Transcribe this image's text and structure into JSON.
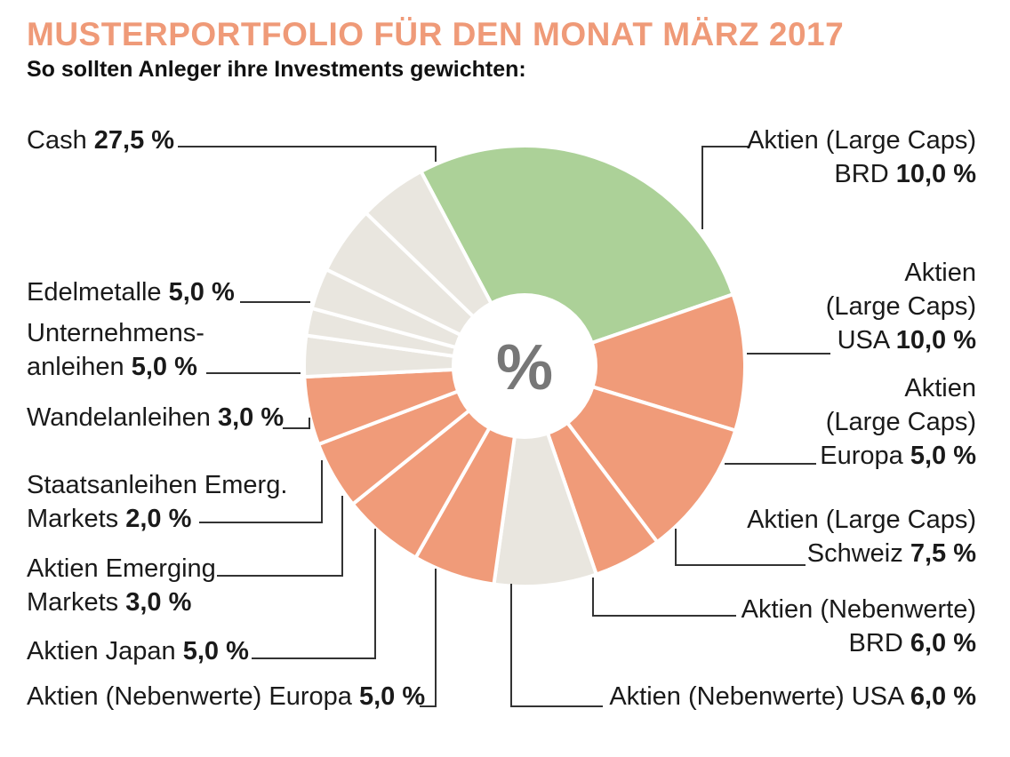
{
  "header": {
    "title": "MUSTERPORTFOLIO FÜR DEN MONAT MÄRZ 2017",
    "subtitle": "So sollten Anleger ihre Investments gewichten:"
  },
  "center_symbol": "%",
  "colors": {
    "title": "#ef9a78",
    "cash": "#acd198",
    "aktien": "#f09b79",
    "anleihen": "#e9e6df",
    "separator": "#ffffff",
    "leader": "#333333"
  },
  "chart_data": {
    "type": "pie",
    "donut": true,
    "title": "MUSTERPORTFOLIO FÜR DEN MONAT MÄRZ 2017",
    "subtitle": "So sollten Anleger ihre Investments gewichten:",
    "unit": "%",
    "slices": [
      {
        "lines": [
          "Cash"
        ],
        "value": 27.5,
        "value_text": "27,5 %",
        "group": "cash"
      },
      {
        "lines": [
          "Aktien (Large Caps)",
          "BRD"
        ],
        "value": 10.0,
        "value_text": "10,0 %",
        "group": "aktien"
      },
      {
        "lines": [
          "Aktien",
          "(Large Caps)",
          "USA"
        ],
        "value": 10.0,
        "value_text": "10,0 %",
        "group": "aktien"
      },
      {
        "lines": [
          "Aktien",
          "(Large Caps)",
          "Europa"
        ],
        "value": 5.0,
        "value_text": "5,0 %",
        "group": "aktien"
      },
      {
        "lines": [
          "Aktien (Large Caps)",
          "Schweiz"
        ],
        "value": 7.5,
        "value_text": "7,5 %",
        "group": "anleihen"
      },
      {
        "lines": [
          "Aktien (Nebenwerte)",
          "BRD"
        ],
        "value": 6.0,
        "value_text": "6,0 %",
        "group": "aktien"
      },
      {
        "lines": [
          "Aktien (Nebenwerte) USA"
        ],
        "value": 6.0,
        "value_text": "6,0 %",
        "group": "aktien"
      },
      {
        "lines": [
          "Aktien (Nebenwerte) Europa"
        ],
        "value": 5.0,
        "value_text": "5,0 %",
        "group": "aktien"
      },
      {
        "lines": [
          "Aktien Japan"
        ],
        "value": 5.0,
        "value_text": "5,0 %",
        "group": "aktien"
      },
      {
        "lines": [
          "Aktien Emerging",
          "Markets"
        ],
        "value": 3.0,
        "value_text": "3,0 %",
        "group": "anleihen"
      },
      {
        "lines": [
          "Staatsanleihen Emerg.",
          "Markets"
        ],
        "value": 2.0,
        "value_text": "2,0 %",
        "group": "anleihen"
      },
      {
        "lines": [
          "Wandelanleihen"
        ],
        "value": 3.0,
        "value_text": "3,0 %",
        "group": "anleihen"
      },
      {
        "lines": [
          "Unternehmens-",
          "anleihen"
        ],
        "value": 5.0,
        "value_text": "5,0 %",
        "group": "anleihen"
      },
      {
        "lines": [
          "Edelmetalle"
        ],
        "value": 5.0,
        "value_text": "5,0 %",
        "group": "anleihen"
      }
    ]
  }
}
